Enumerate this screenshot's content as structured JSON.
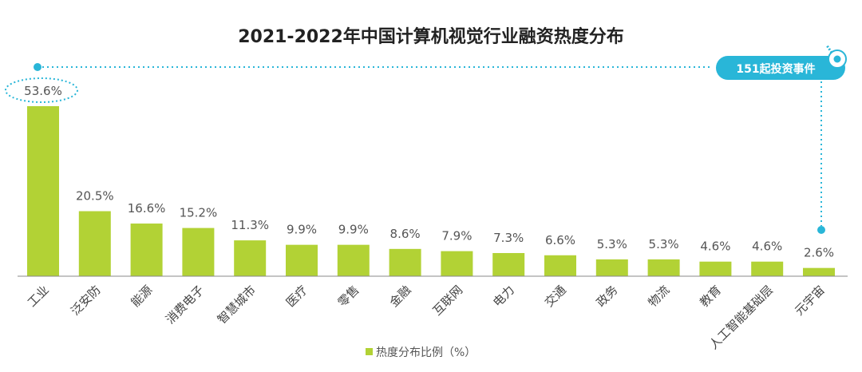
{
  "chart_data": {
    "type": "bar",
    "title": "2021-2022年中国计算机视觉行业融资热度分布",
    "categories": [
      "工业",
      "泛安防",
      "能源",
      "消费电子",
      "智慧城市",
      "医疗",
      "零售",
      "金融",
      "互联网",
      "电力",
      "交通",
      "政务",
      "物流",
      "教育",
      "人工智能基础层",
      "元宇宙"
    ],
    "series": [
      {
        "name": "热度分布比例（%）",
        "values": [
          53.6,
          20.5,
          16.6,
          15.2,
          11.3,
          9.9,
          9.9,
          8.6,
          7.9,
          7.3,
          6.6,
          5.3,
          5.3,
          4.6,
          4.6,
          2.6
        ],
        "labels": [
          "53.6%",
          "20.5%",
          "16.6%",
          "15.2%",
          "11.3%",
          "9.9%",
          "9.9%",
          "8.6%",
          "7.9%",
          "7.3%",
          "6.6%",
          "5.3%",
          "5.3%",
          "4.6%",
          "4.6%",
          "2.6%"
        ]
      }
    ],
    "ylim": [
      0,
      53.6
    ],
    "grid": false,
    "legend_position": "bottom-center",
    "annotation": "151起投资事件",
    "colors": {
      "bar": "#b2d235",
      "accent": "#29b6d8",
      "badge": "#29b6d8"
    }
  }
}
